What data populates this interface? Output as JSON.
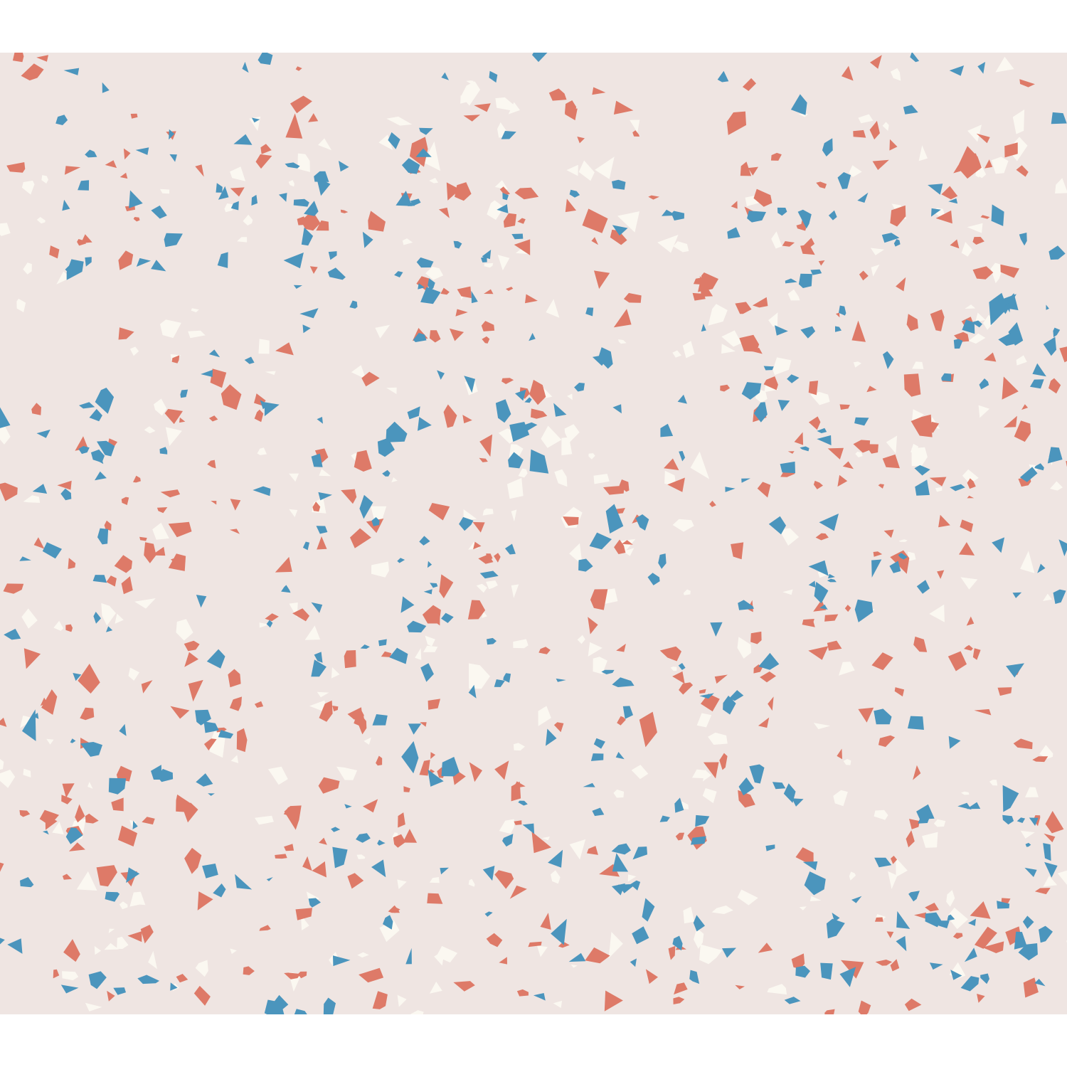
{
  "image": {
    "subject": "terrazzo-pattern",
    "colors": {
      "page": "#ffffff",
      "background": "#efe5e2",
      "coral": "#de7a68",
      "blue": "#4b95bd",
      "cream": "#fbf8f1"
    },
    "chip_density": {
      "coral": 460,
      "blue": 420,
      "cream": 300
    }
  }
}
